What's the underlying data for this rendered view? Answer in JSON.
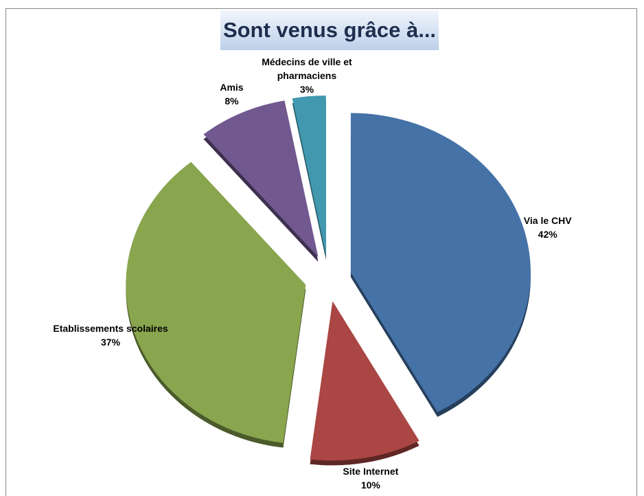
{
  "chart_data": {
    "type": "pie",
    "title": "Sont venus grâce à...",
    "categories": [
      "Via le  CHV",
      "Site Internet",
      "Etablissements scolaires",
      "Amis",
      "Médecins de ville et pharmaciens"
    ],
    "values": [
      42,
      10,
      37,
      8,
      3
    ],
    "value_labels": [
      "42%",
      "10%",
      "37%",
      "8%",
      "3%"
    ],
    "colors": [
      "#4572a7",
      "#aa4643",
      "#89a54e",
      "#71588f",
      "#4198af"
    ]
  }
}
